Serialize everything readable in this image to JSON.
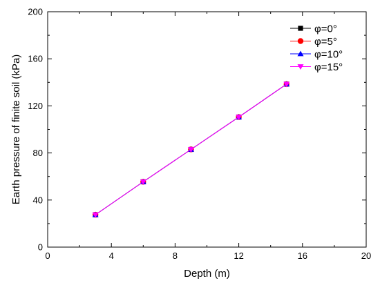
{
  "chart_data": {
    "type": "line",
    "xlabel": "Depth (m)",
    "ylabel": "Earth pressure of finite soil (kPa)",
    "xlim": [
      0,
      20
    ],
    "ylim": [
      0,
      200
    ],
    "xticks": [
      0,
      4,
      8,
      12,
      16,
      20
    ],
    "yticks": [
      0,
      40,
      80,
      120,
      160,
      200
    ],
    "grid": false,
    "legend_position": "top-right",
    "series": [
      {
        "name": "φ=0°",
        "marker": "square",
        "color": "#000000",
        "x": [
          3,
          6,
          9,
          12,
          15
        ],
        "y": [
          27.5,
          55.5,
          83,
          110.5,
          138.5
        ]
      },
      {
        "name": "φ=5°",
        "marker": "circle",
        "color": "#ff0000",
        "x": [
          3,
          6,
          9,
          12,
          15
        ],
        "y": [
          27.5,
          55.5,
          83,
          110.5,
          138.5
        ]
      },
      {
        "name": "φ=10°",
        "marker": "triangle-up",
        "color": "#0000ff",
        "x": [
          3,
          6,
          9,
          12,
          15
        ],
        "y": [
          27.5,
          55.5,
          83,
          110.5,
          138.5
        ]
      },
      {
        "name": "φ=15°",
        "marker": "triangle-down",
        "color": "#ff00ff",
        "x": [
          3,
          6,
          9,
          12,
          15
        ],
        "y": [
          27.5,
          55.5,
          83,
          110.5,
          138.5
        ]
      }
    ]
  }
}
